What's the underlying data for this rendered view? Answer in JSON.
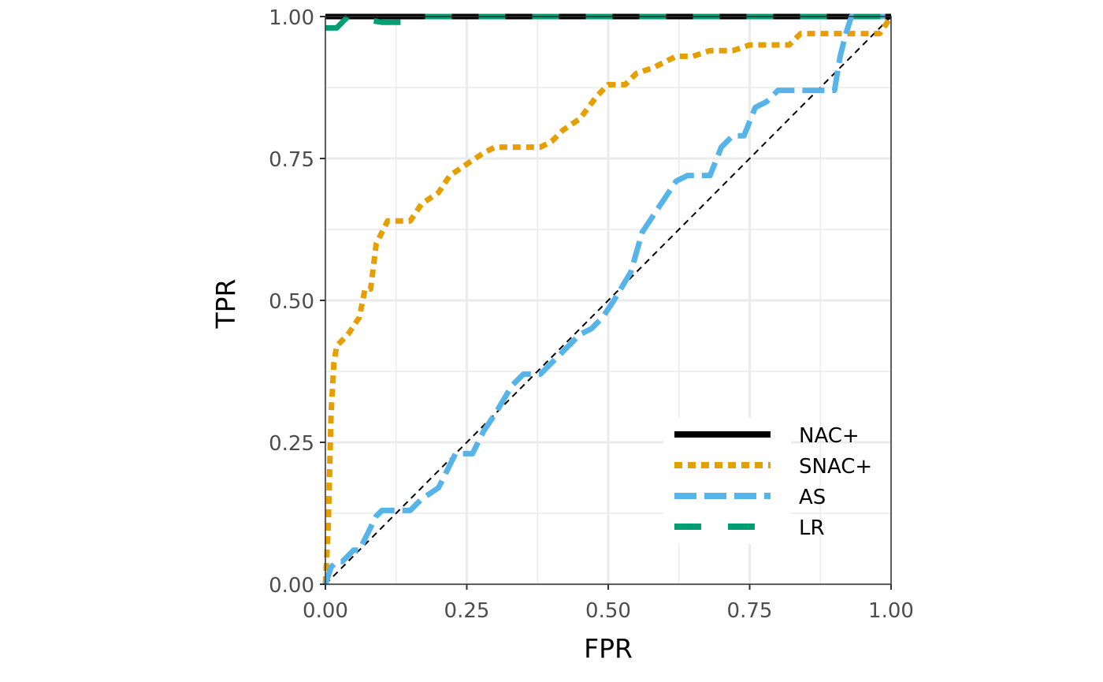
{
  "chart_data": {
    "type": "line",
    "xlabel": "FPR",
    "ylabel": "TPR",
    "xlim": [
      0,
      1
    ],
    "ylim": [
      0,
      1
    ],
    "xticks": [
      "0.00",
      "0.25",
      "0.50",
      "0.75",
      "1.00"
    ],
    "yticks": [
      "0.00",
      "0.25",
      "0.50",
      "0.75",
      "1.00"
    ],
    "grid": true,
    "legend_position": "bottom-right",
    "reference_line": {
      "x": [
        0,
        1
      ],
      "y": [
        0,
        1
      ],
      "style": "dashed",
      "color": "#000000"
    },
    "series": [
      {
        "name": "NAC+",
        "color": "#000000",
        "dash": "solid",
        "x": [
          0,
          1
        ],
        "y": [
          1,
          1
        ]
      },
      {
        "name": "SNAC+",
        "color": "#E69F00",
        "dash": "dotted",
        "x": [
          0.0,
          0.005,
          0.01,
          0.015,
          0.02,
          0.04,
          0.06,
          0.07,
          0.08,
          0.09,
          0.1,
          0.11,
          0.13,
          0.15,
          0.17,
          0.2,
          0.22,
          0.25,
          0.28,
          0.3,
          0.38,
          0.4,
          0.42,
          0.45,
          0.48,
          0.5,
          0.53,
          0.55,
          0.58,
          0.6,
          0.62,
          0.65,
          0.68,
          0.72,
          0.75,
          0.78,
          0.82,
          0.84,
          0.9,
          0.95,
          0.98,
          1.0
        ],
        "y": [
          0.0,
          0.1,
          0.3,
          0.39,
          0.42,
          0.44,
          0.47,
          0.52,
          0.52,
          0.6,
          0.62,
          0.64,
          0.64,
          0.64,
          0.67,
          0.69,
          0.72,
          0.74,
          0.76,
          0.77,
          0.77,
          0.78,
          0.8,
          0.82,
          0.86,
          0.88,
          0.88,
          0.9,
          0.91,
          0.92,
          0.93,
          0.93,
          0.94,
          0.94,
          0.95,
          0.95,
          0.95,
          0.97,
          0.97,
          0.97,
          0.97,
          1.0
        ]
      },
      {
        "name": "AS",
        "color": "#56B4E9",
        "dash": "dashed",
        "x": [
          0.0,
          0.01,
          0.02,
          0.03,
          0.05,
          0.06,
          0.08,
          0.09,
          0.1,
          0.13,
          0.15,
          0.17,
          0.2,
          0.21,
          0.23,
          0.26,
          0.28,
          0.3,
          0.33,
          0.35,
          0.38,
          0.4,
          0.42,
          0.45,
          0.47,
          0.49,
          0.51,
          0.54,
          0.56,
          0.58,
          0.62,
          0.64,
          0.68,
          0.7,
          0.72,
          0.74,
          0.76,
          0.78,
          0.8,
          0.88,
          0.9,
          0.91,
          0.92,
          0.93,
          0.95,
          1.0
        ],
        "y": [
          0.0,
          0.03,
          0.04,
          0.04,
          0.06,
          0.06,
          0.1,
          0.12,
          0.13,
          0.13,
          0.13,
          0.15,
          0.17,
          0.19,
          0.23,
          0.23,
          0.27,
          0.3,
          0.35,
          0.37,
          0.37,
          0.39,
          0.41,
          0.44,
          0.45,
          0.47,
          0.5,
          0.55,
          0.62,
          0.65,
          0.71,
          0.72,
          0.72,
          0.77,
          0.79,
          0.79,
          0.84,
          0.85,
          0.87,
          0.87,
          0.87,
          0.93,
          0.97,
          1.0,
          1.0,
          1.0
        ]
      },
      {
        "name": "LR",
        "color": "#009E73",
        "dash": "longdash",
        "x": [
          0.0,
          0.02,
          0.03,
          0.04,
          0.1,
          0.14,
          0.15,
          0.16,
          1.0
        ],
        "y": [
          0.98,
          0.98,
          0.99,
          1.0,
          0.99,
          0.99,
          1.0,
          1.0,
          1.0
        ]
      }
    ]
  }
}
